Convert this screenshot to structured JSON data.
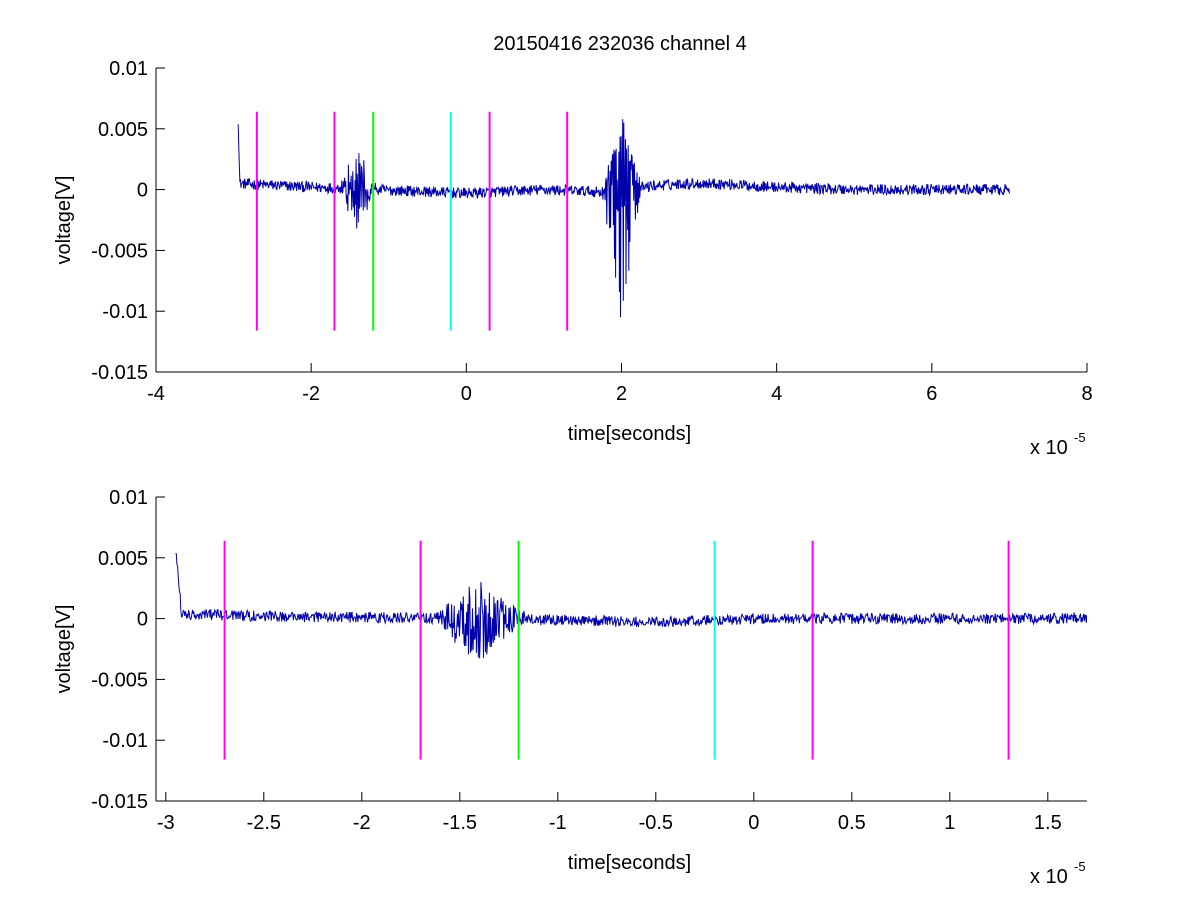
{
  "figure": {
    "title": "20150416 232036 channel 4",
    "background": "#ffffff"
  },
  "colors": {
    "signal": "#0000aa",
    "axis": "#000000",
    "magenta": "#ff00ff",
    "green": "#00ff00",
    "cyan": "#00ffff"
  },
  "chart_data": [
    {
      "type": "line",
      "title": "20150416 232036 channel 4",
      "xlabel": "time[seconds]",
      "ylabel": "voltage[V]",
      "x_multiplier_label": "x 10",
      "x_multiplier_exponent": "-5",
      "xlim": [
        -4,
        8
      ],
      "ylim": [
        -0.015,
        0.01
      ],
      "x_ticks": [
        -4,
        -2,
        0,
        2,
        4,
        6,
        8
      ],
      "x_tick_labels": [
        "-4",
        "-2",
        "0",
        "2",
        "4",
        "6",
        "8"
      ],
      "y_ticks": [
        -0.015,
        -0.01,
        -0.005,
        0,
        0.005,
        0.01
      ],
      "y_tick_labels": [
        "-0.015",
        "-0.01",
        "-0.005",
        "0",
        "0.005",
        "0.01"
      ],
      "grid": false,
      "series": [
        {
          "color": "#0000aa",
          "x_range": [
            -2.94,
            7.0
          ],
          "baseline_points": [
            [
              -2.94,
              0.0058
            ],
            [
              -2.92,
              0.0005
            ],
            [
              -2.0,
              0.0002
            ],
            [
              -1.5,
              0.0001
            ],
            [
              -1.2,
              0.0
            ],
            [
              0,
              -0.0003
            ],
            [
              1.0,
              0.0
            ],
            [
              1.8,
              -0.0002
            ],
            [
              2.4,
              0.0003
            ],
            [
              2.8,
              0.0005
            ],
            [
              3.2,
              0.0005
            ],
            [
              4.0,
              0.0002
            ],
            [
              5.0,
              0.0
            ],
            [
              6.0,
              0.0
            ],
            [
              7.0,
              0.0
            ]
          ],
          "bursts": [
            {
              "x": -1.4,
              "peak": 0.003,
              "trough": -0.0032,
              "width": 0.25
            },
            {
              "x": 2.0,
              "peak": 0.0058,
              "trough": -0.0105,
              "width": 0.25
            }
          ]
        }
      ],
      "markers": [
        {
          "x": -2.7,
          "color": "#ff00ff",
          "y_range": [
            -0.0116,
            0.0064
          ]
        },
        {
          "x": -1.7,
          "color": "#ff00ff",
          "y_range": [
            -0.0116,
            0.0064
          ]
        },
        {
          "x": -1.2,
          "color": "#00ff00",
          "y_range": [
            -0.0116,
            0.0064
          ]
        },
        {
          "x": -0.2,
          "color": "#00ffff",
          "y_range": [
            -0.0116,
            0.0064
          ]
        },
        {
          "x": 0.3,
          "color": "#ff00ff",
          "y_range": [
            -0.0116,
            0.0064
          ]
        },
        {
          "x": 1.3,
          "color": "#ff00ff",
          "y_range": [
            -0.0116,
            0.0064
          ]
        }
      ]
    },
    {
      "type": "line",
      "title": "",
      "xlabel": "time[seconds]",
      "ylabel": "voltage[V]",
      "x_multiplier_label": "x 10",
      "x_multiplier_exponent": "-5",
      "xlim": [
        -3.05,
        1.7
      ],
      "ylim": [
        -0.015,
        0.01
      ],
      "x_ticks": [
        -3,
        -2.5,
        -2,
        -1.5,
        -1,
        -0.5,
        0,
        0.5,
        1,
        1.5
      ],
      "x_tick_labels": [
        "-3",
        "-2.5",
        "-2",
        "-1.5",
        "-1",
        "-0.5",
        "0",
        "0.5",
        "1",
        "1.5"
      ],
      "y_ticks": [
        -0.015,
        -0.01,
        -0.005,
        0,
        0.005,
        0.01
      ],
      "y_tick_labels": [
        "-0.015",
        "-0.01",
        "-0.005",
        "0",
        "0.005",
        "0.01"
      ],
      "grid": false,
      "series": [
        {
          "color": "#0000aa",
          "x_range": [
            -2.95,
            1.7
          ],
          "baseline_points": [
            [
              -2.95,
              0.0058
            ],
            [
              -2.92,
              0.0004
            ],
            [
              -2.5,
              0.0002
            ],
            [
              -2.0,
              0.0001
            ],
            [
              -1.5,
              0.0
            ],
            [
              -1.0,
              -0.0001
            ],
            [
              -0.5,
              -0.0003
            ],
            [
              0,
              0.0
            ],
            [
              0.5,
              0.0
            ],
            [
              1.0,
              0.0
            ],
            [
              1.7,
              0.0
            ]
          ],
          "bursts": [
            {
              "x": -1.4,
              "peak": 0.003,
              "trough": -0.0032,
              "width": 0.25
            }
          ]
        }
      ],
      "markers": [
        {
          "x": -2.7,
          "color": "#ff00ff",
          "y_range": [
            -0.0116,
            0.0064
          ]
        },
        {
          "x": -1.7,
          "color": "#ff00ff",
          "y_range": [
            -0.0116,
            0.0064
          ]
        },
        {
          "x": -1.2,
          "color": "#00ff00",
          "y_range": [
            -0.0116,
            0.0064
          ]
        },
        {
          "x": -0.2,
          "color": "#00ffff",
          "y_range": [
            -0.0116,
            0.0064
          ]
        },
        {
          "x": 0.3,
          "color": "#ff00ff",
          "y_range": [
            -0.0116,
            0.0064
          ]
        },
        {
          "x": 1.3,
          "color": "#ff00ff",
          "y_range": [
            -0.0116,
            0.0064
          ]
        }
      ]
    }
  ]
}
